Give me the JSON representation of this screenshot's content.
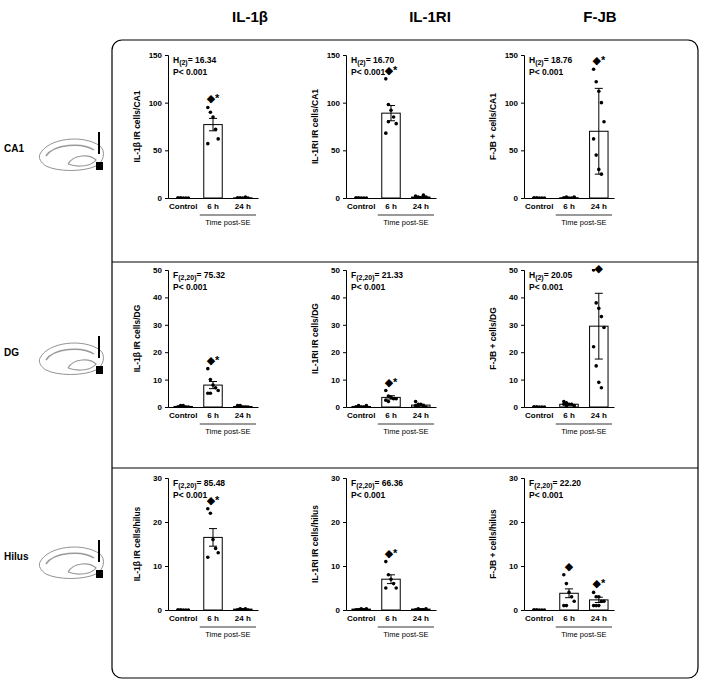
{
  "column_titles": [
    "IL-1β",
    "IL-1RI",
    "F-JB"
  ],
  "row_titles": [
    "CA1",
    "DG",
    "Hilus"
  ],
  "chart_data": [
    {
      "type": "bar",
      "categories": [
        "Control",
        "6 h",
        "24 h"
      ],
      "values": [
        0,
        77,
        0.2
      ],
      "errors": [
        0,
        6.5,
        0.1
      ],
      "points": [
        [
          0,
          0,
          0,
          0,
          0,
          0,
          0
        ],
        [
          95,
          90,
          85,
          72,
          62,
          57
        ],
        [
          0,
          0,
          0,
          1,
          0,
          0,
          0
        ]
      ],
      "color": "#ffffff",
      "ylabel": "IL-1β IR cells/CA1",
      "xlabel": "Time post-SE",
      "stat_lines": [
        "H(2)= 16.34",
        "P< 0.001"
      ],
      "significance": [
        null,
        "◆*",
        null
      ],
      "ylim": [
        0,
        150
      ],
      "yticks": [
        0,
        50,
        100,
        150
      ]
    },
    {
      "type": "bar",
      "categories": [
        "Control",
        "6 h",
        "24 h"
      ],
      "values": [
        0,
        89,
        1
      ],
      "errors": [
        0,
        8,
        0.4
      ],
      "points": [
        [
          0,
          0,
          0,
          0,
          0,
          0,
          0
        ],
        [
          125,
          98,
          92,
          85,
          78,
          68,
          80
        ],
        [
          2,
          1,
          0,
          3,
          1,
          0,
          0
        ]
      ],
      "color": "#ffffff",
      "ylabel": "IL-1RI IR cells/CA1",
      "xlabel": "Time post-SE",
      "stat_lines": [
        "H(2)= 16.70",
        "P< 0.001"
      ],
      "significance": [
        null,
        "◆*",
        null
      ],
      "ylim": [
        0,
        150
      ],
      "yticks": [
        0,
        50,
        100,
        150
      ]
    },
    {
      "type": "bar",
      "categories": [
        "Control",
        "6 h",
        "24 h"
      ],
      "values": [
        0,
        0.3,
        70
      ],
      "errors": [
        0,
        0.2,
        45
      ],
      "points": [
        [
          0,
          0,
          0,
          0,
          0,
          0,
          0
        ],
        [
          0,
          1,
          0,
          0,
          1,
          0,
          0
        ],
        [
          135,
          122,
          112,
          100,
          80,
          62,
          45,
          30,
          25
        ]
      ],
      "color": "#ffffff",
      "ylabel": "F-JB + cells/CA1",
      "xlabel": "Time post-SE",
      "stat_lines": [
        "H(2)= 18.76",
        "P< 0.001"
      ],
      "significance": [
        null,
        null,
        "◆*"
      ],
      "ylim": [
        0,
        150
      ],
      "yticks": [
        0,
        50,
        100,
        150
      ]
    },
    {
      "type": "bar",
      "categories": [
        "Control",
        "6 h",
        "24 h"
      ],
      "values": [
        0.2,
        8,
        0.2
      ],
      "errors": [
        0.1,
        1.3,
        0.1
      ],
      "points": [
        [
          0,
          0,
          0.5,
          0,
          0,
          0,
          0.5
        ],
        [
          14,
          10,
          8,
          7,
          6,
          5,
          5
        ],
        [
          0,
          0.5,
          0,
          0,
          0,
          0.5,
          0
        ]
      ],
      "color": "#ffffff",
      "ylabel": "IL-1β IR cells/DG",
      "xlabel": "Time post-SE",
      "stat_lines": [
        "F(2,20)= 75.32",
        "P< 0.001"
      ],
      "significance": [
        null,
        "◆*",
        null
      ],
      "ylim": [
        0,
        50
      ],
      "yticks": [
        0,
        10,
        20,
        30,
        40,
        50
      ]
    },
    {
      "type": "bar",
      "categories": [
        "Control",
        "6 h",
        "24 h"
      ],
      "values": [
        0.2,
        3.5,
        0.7
      ],
      "errors": [
        0.1,
        0.6,
        0.3
      ],
      "points": [
        [
          0,
          0.5,
          0,
          0,
          0.5,
          0,
          0
        ],
        [
          6,
          4,
          3.5,
          3,
          3,
          2.5,
          2
        ],
        [
          2,
          1,
          1,
          0.5,
          0,
          0.5,
          0
        ]
      ],
      "color": "#ffffff",
      "ylabel": "IL-1RI IR cells/DG",
      "xlabel": "Time post-SE",
      "stat_lines": [
        "F(2,20)= 21.33",
        "P< 0.001"
      ],
      "significance": [
        null,
        "◆*",
        null
      ],
      "ylim": [
        0,
        50
      ],
      "yticks": [
        0,
        10,
        20,
        30,
        40,
        50
      ]
    },
    {
      "type": "bar",
      "categories": [
        "Control",
        "6 h",
        "24 h"
      ],
      "values": [
        0,
        1,
        29.5
      ],
      "errors": [
        0,
        0.3,
        12
      ],
      "points": [
        [
          0,
          0,
          0,
          0,
          0,
          0,
          0
        ],
        [
          2,
          1.5,
          1,
          1,
          0.5,
          1,
          0.5
        ],
        [
          50,
          38,
          36,
          33,
          29,
          22,
          15,
          9,
          7
        ]
      ],
      "color": "#ffffff",
      "ylabel": "F-JB + cells/DG",
      "xlabel": "Time post-SE",
      "stat_lines": [
        "H(2)= 20.05",
        "P< 0.001"
      ],
      "significance": [
        null,
        null,
        "◆"
      ],
      "ylim": [
        0,
        50
      ],
      "yticks": [
        0,
        10,
        20,
        30,
        40,
        50
      ]
    },
    {
      "type": "bar",
      "categories": [
        "Control",
        "6 h",
        "24 h"
      ],
      "values": [
        0,
        16.5,
        0.2
      ],
      "errors": [
        0,
        2,
        0.1
      ],
      "points": [
        [
          0,
          0,
          0,
          0,
          0,
          0,
          0
        ],
        [
          23,
          22,
          16,
          14,
          13,
          12
        ],
        [
          0,
          0.3,
          0,
          0.3,
          0,
          0,
          0
        ]
      ],
      "color": "#ffffff",
      "ylabel": "IL-1β IR cells/hilus",
      "xlabel": "Time post-SE",
      "stat_lines": [
        "F(2,20)= 85.48",
        "P< 0.001"
      ],
      "significance": [
        null,
        "◆*",
        null
      ],
      "ylim": [
        0,
        30
      ],
      "yticks": [
        0,
        10,
        20,
        30
      ]
    },
    {
      "type": "bar",
      "categories": [
        "Control",
        "6 h",
        "24 h"
      ],
      "values": [
        0.2,
        7,
        0.2
      ],
      "errors": [
        0.1,
        1,
        0.1
      ],
      "points": [
        [
          0,
          0,
          0.3,
          0,
          0.3,
          0,
          0
        ],
        [
          11,
          8,
          7,
          6,
          5,
          5
        ],
        [
          0,
          0.3,
          0,
          0,
          0.3,
          0,
          0
        ]
      ],
      "color": "#ffffff",
      "ylabel": "IL-1RI IR cells/hilus",
      "xlabel": "Time post-SE",
      "stat_lines": [
        "F(2,20)= 66.36",
        "P< 0.001"
      ],
      "significance": [
        null,
        "◆*",
        null
      ],
      "ylim": [
        0,
        30
      ],
      "yticks": [
        0,
        10,
        20,
        30
      ]
    },
    {
      "type": "bar",
      "categories": [
        "Control",
        "6 h",
        "24 h"
      ],
      "values": [
        0,
        3.8,
        2.3
      ],
      "errors": [
        0,
        1,
        0.6
      ],
      "points": [
        [
          0,
          0,
          0,
          0,
          0,
          0,
          0
        ],
        [
          8,
          6,
          4,
          3,
          2,
          1,
          1
        ],
        [
          4,
          3,
          3,
          2,
          2,
          1,
          1,
          1
        ]
      ],
      "color": "#ffffff",
      "ylabel": "F-JB + cells/hilus",
      "xlabel": "Time post-SE",
      "stat_lines": [
        "F(2,20)= 22.20",
        "P< 0.001"
      ],
      "significance": [
        null,
        "◆",
        "◆*"
      ],
      "ylim": [
        0,
        30
      ],
      "yticks": [
        0,
        10,
        20,
        30
      ]
    }
  ]
}
